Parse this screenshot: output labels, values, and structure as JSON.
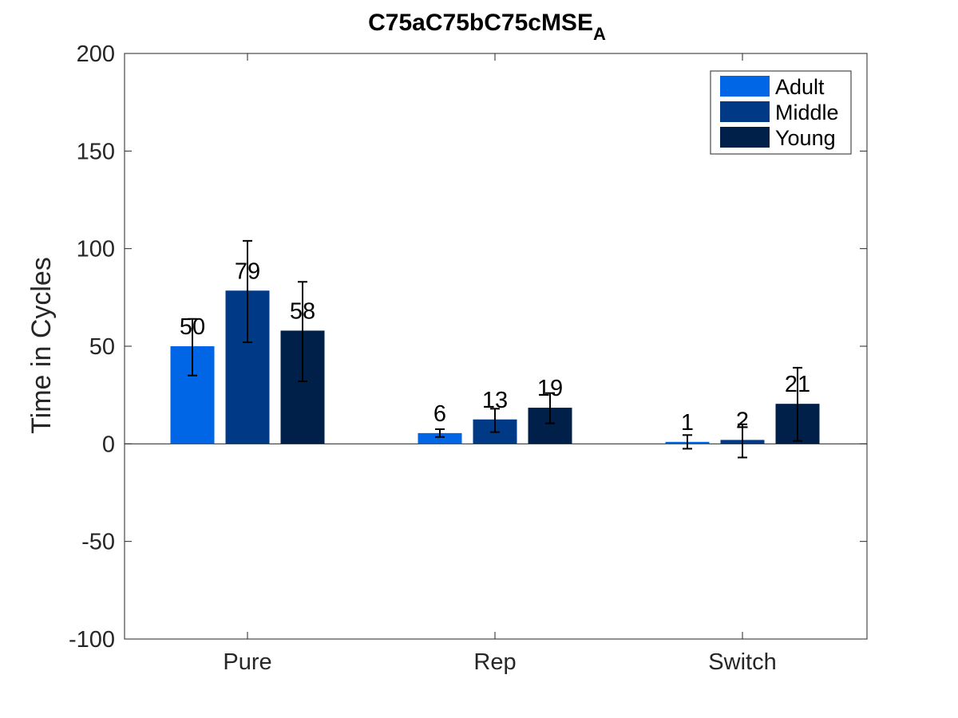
{
  "chart_data": {
    "type": "bar",
    "title": "C75aC75bC75cMSE",
    "title_subscript": "A",
    "xlabel": "",
    "ylabel": "Time in Cycles",
    "ylim": [
      -100,
      200
    ],
    "yticks": [
      -100,
      -50,
      0,
      50,
      100,
      150,
      200
    ],
    "categories": [
      "Pure",
      "Rep",
      "Switch"
    ],
    "legend_position": "top-right",
    "grid": false,
    "series": [
      {
        "name": "Adult",
        "color": "#0066e6",
        "values": [
          50,
          5.5,
          1
        ],
        "labels": [
          "50",
          "6",
          "1"
        ],
        "error": [
          [
            35,
            64
          ],
          [
            3.5,
            7.5
          ],
          [
            -2.5,
            4.5
          ]
        ]
      },
      {
        "name": "Middle",
        "color": "#003a87",
        "values": [
          78.5,
          12.5,
          2
        ],
        "labels": [
          "79",
          "13",
          "2"
        ],
        "error": [
          [
            52,
            104
          ],
          [
            6,
            18
          ],
          [
            -7,
            10
          ]
        ]
      },
      {
        "name": "Young",
        "color": "#00204a",
        "values": [
          58,
          18.5,
          20.5
        ],
        "labels": [
          "58",
          "19",
          "21"
        ],
        "error": [
          [
            32,
            83
          ],
          [
            10.5,
            26
          ],
          [
            1.5,
            39
          ]
        ]
      }
    ]
  }
}
